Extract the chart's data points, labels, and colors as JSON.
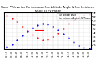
{
  "title": "Solar PV/Inverter Performance Sun Altitude Angle & Sun Incidence Angle on PV Panels",
  "blue_label": "Sun Altitude Angle",
  "red_label": "Sun Incidence Angle on PV Panels",
  "time_labels": [
    "07:15",
    "08:00",
    "08:45",
    "09:30",
    "10:15",
    "11:00",
    "11:45",
    "12:30",
    "13:15",
    "14:00",
    "14:45",
    "15:30",
    "16:15",
    "17:00",
    "17:45",
    "18:30",
    "19:00"
  ],
  "blue_color": "#0000ff",
  "red_color": "#ff0000",
  "ylim": [
    0,
    90
  ],
  "yticks": [
    10,
    20,
    30,
    40,
    50,
    60,
    70,
    80,
    90
  ],
  "background_color": "#ffffff",
  "grid_color": "#d0d0d0",
  "title_fontsize": 3.0,
  "tick_fontsize": 2.5,
  "legend_fontsize": 2.0,
  "blue_vals": [
    5,
    12,
    22,
    33,
    43,
    52,
    58,
    62,
    60,
    55,
    47,
    37,
    26,
    16,
    8,
    3,
    1
  ],
  "red_vals": [
    82,
    75,
    66,
    55,
    45,
    35,
    26,
    22,
    24,
    30,
    39,
    50,
    61,
    71,
    78,
    83,
    85
  ],
  "red_hline_x": [
    5.5,
    7.0
  ],
  "red_hline_y": 47
}
